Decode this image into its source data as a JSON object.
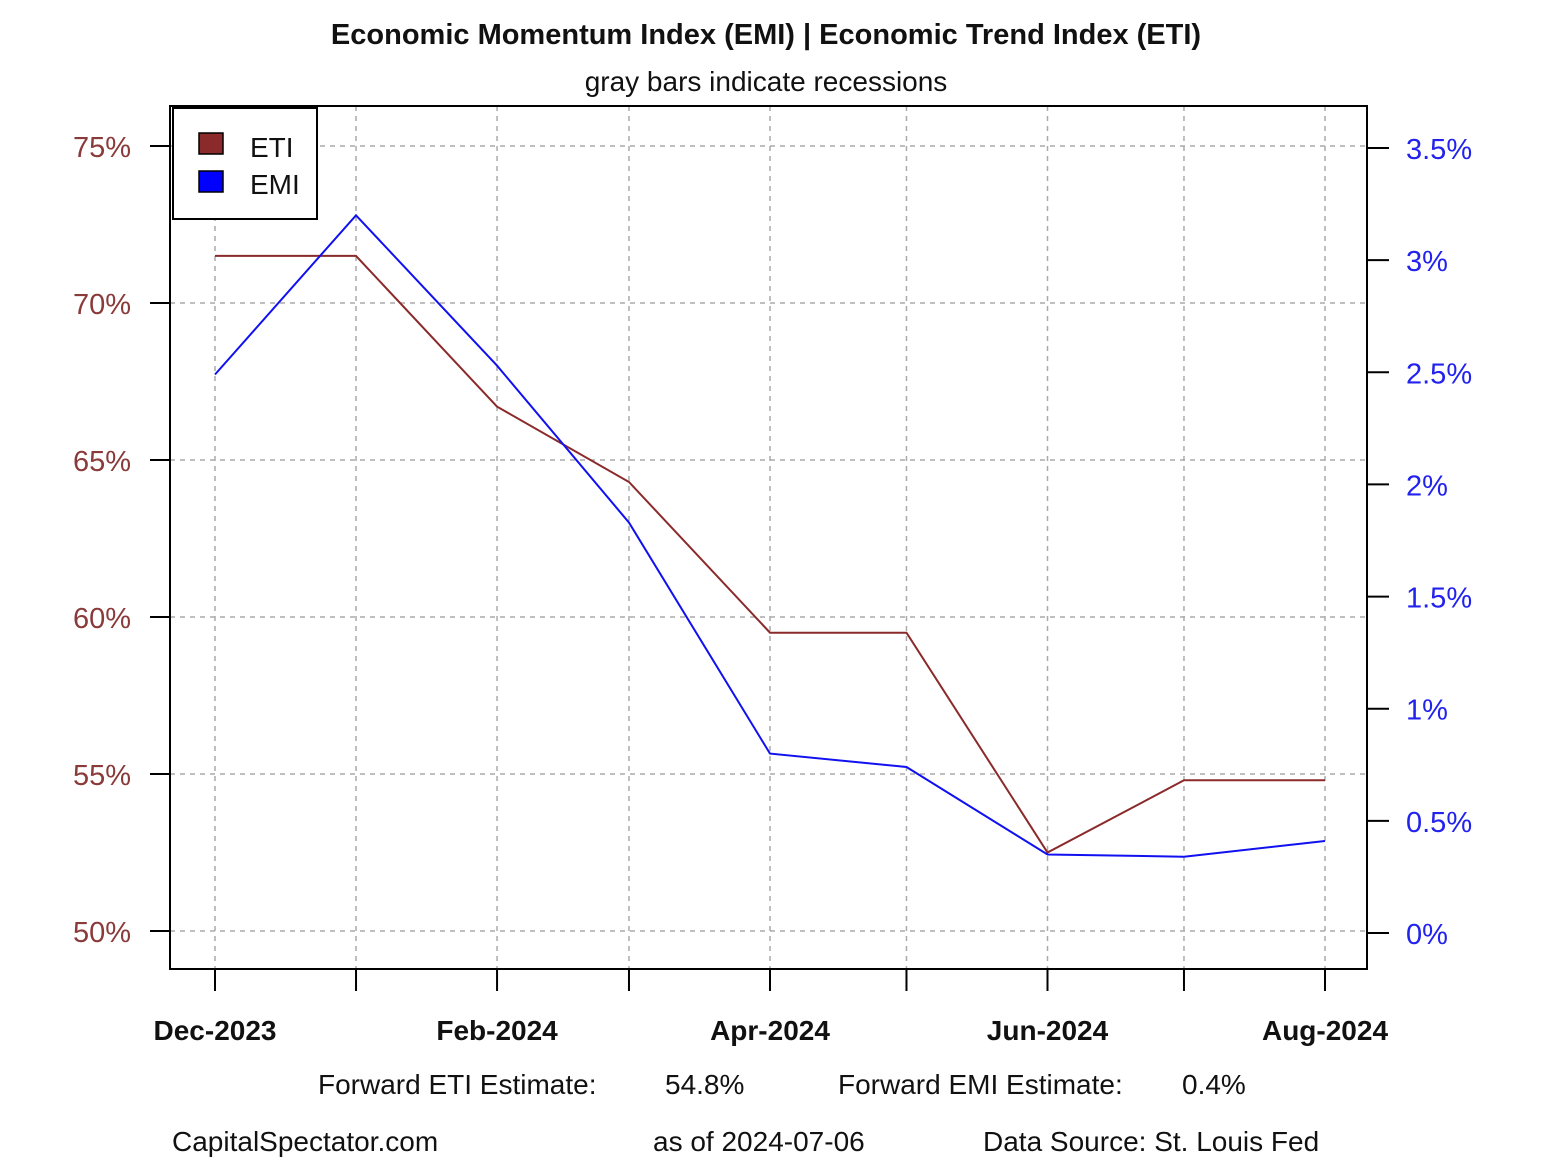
{
  "chart_data": {
    "type": "line",
    "title": "Economic Momentum Index (EMI) | Economic Trend Index (ETI)",
    "subtitle": "gray bars indicate recessions",
    "x": [
      "2023-12-01",
      "2024-01-01",
      "2024-02-01",
      "2024-03-01",
      "2024-04-01",
      "2024-05-01",
      "2024-06-01",
      "2024-07-01",
      "2024-08-01"
    ],
    "x_tick_labels": [
      {
        "date": "2023-12-01",
        "label": "Dec-2023"
      },
      {
        "date": "2024-01-01",
        "label": ""
      },
      {
        "date": "2024-02-01",
        "label": "Feb-2024"
      },
      {
        "date": "2024-03-01",
        "label": ""
      },
      {
        "date": "2024-04-01",
        "label": "Apr-2024"
      },
      {
        "date": "2024-05-01",
        "label": ""
      },
      {
        "date": "2024-06-01",
        "label": "Jun-2024"
      },
      {
        "date": "2024-07-01",
        "label": ""
      },
      {
        "date": "2024-08-01",
        "label": "Aug-2024"
      }
    ],
    "series": [
      {
        "name": "ETI",
        "axis": "left",
        "color": "#8B2A2A",
        "values": [
          71.5,
          71.5,
          66.7,
          64.3,
          59.5,
          59.5,
          52.5,
          54.8,
          54.8
        ]
      },
      {
        "name": "EMI",
        "axis": "right",
        "color": "#1010F0",
        "values": [
          2.49,
          3.2,
          2.53,
          1.83,
          0.8,
          0.74,
          0.35,
          0.34,
          0.41
        ]
      }
    ],
    "y_left": {
      "range": [
        48.75,
        76.25
      ],
      "ticks": [
        50,
        55,
        60,
        65,
        70,
        75
      ],
      "tick_labels": [
        "50%",
        "55%",
        "60%",
        "65%",
        "70%",
        "75%"
      ],
      "color": "#8B3A3A"
    },
    "y_right": {
      "ticks": [
        0,
        0.5,
        1,
        1.5,
        2,
        2.5,
        3,
        3.5
      ],
      "tick_labels": [
        "0%",
        "0.5%",
        "1%",
        "1.5%",
        "2%",
        "2.5%",
        "3%",
        "3.5%"
      ],
      "color": "#2222EE"
    },
    "grid": true,
    "legend_placement": "top-left",
    "annotations": {
      "eti_estimate_label": "Forward ETI Estimate:",
      "eti_estimate_value": "54.8%",
      "emi_estimate_label": "Forward EMI Estimate:",
      "emi_estimate_value": "0.4%",
      "source_site": "CapitalSpectator.com",
      "as_of": "as of 2024-07-06",
      "data_source": "Data Source: St. Louis Fed"
    }
  }
}
